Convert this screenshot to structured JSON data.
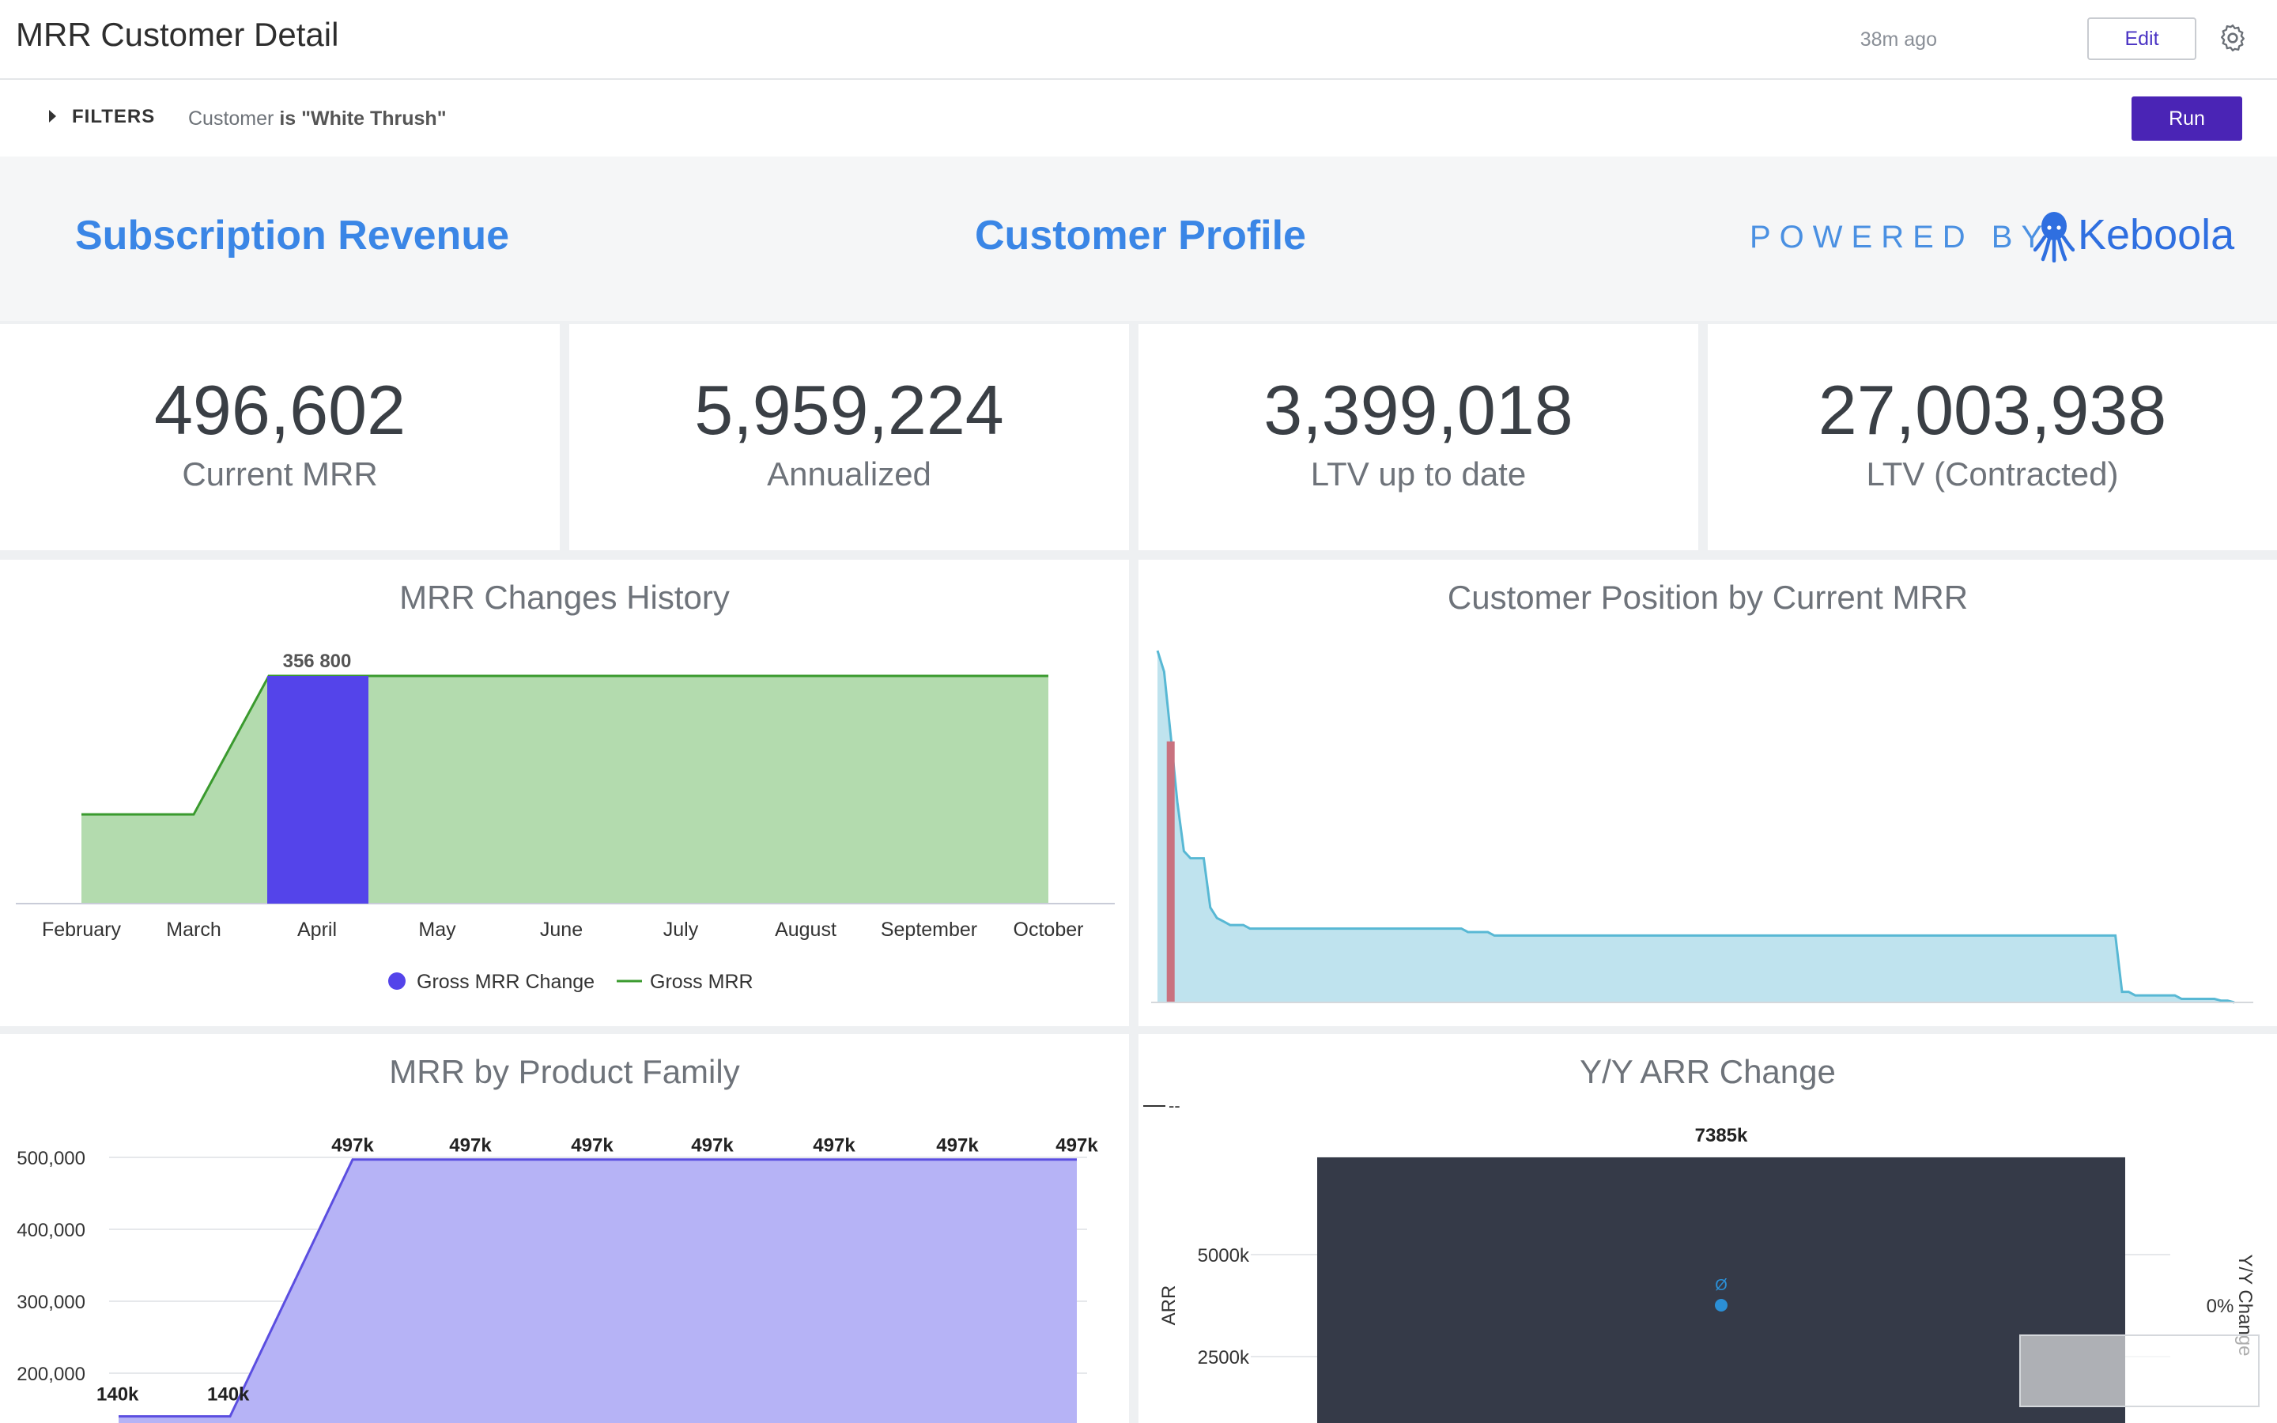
{
  "header": {
    "title": "MRR Customer Detail",
    "last_run": "38m ago",
    "edit_label": "Edit",
    "settings_icon": "gear-icon"
  },
  "filters": {
    "toggle_label": "FILTERS",
    "field": "Customer",
    "operator": "is",
    "value": "\"White Thrush\"",
    "run_label": "Run"
  },
  "banner": {
    "left_heading": "Subscription Revenue",
    "center_heading": "Customer Profile",
    "powered_by": "POWERED BY",
    "brand": "Keboola",
    "brand_icon": "octopus-logo-icon",
    "accent_color": "#3a86e6"
  },
  "kpis": [
    {
      "value": "496,602",
      "label": "Current MRR"
    },
    {
      "value": "5,959,224",
      "label": "Annualized"
    },
    {
      "value": "3,399,018",
      "label": "LTV up to date"
    },
    {
      "value": "27,003,938",
      "label": "LTV (Contracted)"
    }
  ],
  "chart_data": [
    {
      "type": "bar",
      "title": "MRR Changes History",
      "categories": [
        "February",
        "March",
        "April",
        "May",
        "June",
        "July",
        "August",
        "September",
        "October"
      ],
      "series": [
        {
          "name": "Gross MRR Change",
          "kind": "bar",
          "color": "#5444ea",
          "values": [
            null,
            null,
            356800,
            null,
            null,
            null,
            null,
            null,
            null
          ]
        },
        {
          "name": "Gross MRR",
          "kind": "area",
          "color": "#3a9a2e",
          "fill": "#b3dbae",
          "values": [
            139800,
            139800,
            356800,
            356800,
            356800,
            356800,
            356800,
            356800,
            356800
          ]
        }
      ],
      "data_labels": [
        {
          "category": "April",
          "text": "356 800"
        }
      ],
      "ylim": [
        0,
        400000
      ],
      "legend": "bottom"
    },
    {
      "type": "area",
      "title": "Customer Position by Current MRR",
      "color": "#58b8d4",
      "fill": "#bfe3ee",
      "highlight_color": "#c9727f",
      "highlight_index": 2,
      "values": [
        1,
        0.94,
        0.76,
        0.57,
        0.43,
        0.41,
        0.41,
        0.41,
        0.27,
        0.24,
        0.23,
        0.22,
        0.22,
        0.22,
        0.21,
        0.21,
        0.21,
        0.21,
        0.21,
        0.21,
        0.21,
        0.21,
        0.21,
        0.21,
        0.21,
        0.21,
        0.21,
        0.21,
        0.21,
        0.21,
        0.21,
        0.21,
        0.21,
        0.21,
        0.21,
        0.21,
        0.21,
        0.21,
        0.21,
        0.21,
        0.21,
        0.21,
        0.21,
        0.21,
        0.21,
        0.21,
        0.21,
        0.2,
        0.2,
        0.2,
        0.2,
        0.19,
        0.19,
        0.19,
        0.19,
        0.19,
        0.19,
        0.19,
        0.19,
        0.19,
        0.19,
        0.19,
        0.19,
        0.19,
        0.19,
        0.19,
        0.19,
        0.19,
        0.19,
        0.19,
        0.19,
        0.19,
        0.19,
        0.19,
        0.19,
        0.19,
        0.19,
        0.19,
        0.19,
        0.19,
        0.19,
        0.19,
        0.19,
        0.19,
        0.19,
        0.19,
        0.19,
        0.19,
        0.19,
        0.19,
        0.19,
        0.19,
        0.19,
        0.19,
        0.19,
        0.19,
        0.19,
        0.19,
        0.19,
        0.19,
        0.19,
        0.19,
        0.19,
        0.19,
        0.19,
        0.19,
        0.19,
        0.19,
        0.19,
        0.19,
        0.19,
        0.19,
        0.19,
        0.19,
        0.19,
        0.19,
        0.19,
        0.19,
        0.19,
        0.19,
        0.19,
        0.19,
        0.19,
        0.19,
        0.19,
        0.19,
        0.19,
        0.19,
        0.19,
        0.19,
        0.19,
        0.19,
        0.19,
        0.19,
        0.19,
        0.19,
        0.19,
        0.19,
        0.19,
        0.19,
        0.19,
        0.19,
        0.19,
        0.19,
        0.19,
        0.19,
        0.03,
        0.03,
        0.02,
        0.02,
        0.02,
        0.02,
        0.02,
        0.02,
        0.02,
        0.01,
        0.01,
        0.01,
        0.01,
        0.01,
        0.01,
        0.005,
        0.005,
        0.0
      ]
    },
    {
      "type": "area",
      "title": "MRR by Product Family",
      "color": "#5b4ee0",
      "fill": "#b6b3f6",
      "y_ticks": [
        "500,000",
        "400,000",
        "300,000",
        "200,000"
      ],
      "ylim": [
        120000,
        540000
      ],
      "values": [
        140000,
        140000,
        497000,
        497000,
        497000,
        497000,
        497000,
        497000,
        497000
      ],
      "data_labels": [
        "140k",
        "140k",
        "497k",
        "497k",
        "497k",
        "497k",
        "497k",
        "497k",
        "497k"
      ]
    },
    {
      "type": "bar",
      "title": "Y/Y ARR Change",
      "ylabel": "ARR",
      "y2label": "Y/Y Change",
      "y_ticks": [
        "5000k",
        "2500k"
      ],
      "y2_ticks": [
        "0%"
      ],
      "ylim": [
        0,
        8000
      ],
      "bar_color": "#353a48",
      "values": [
        7385
      ],
      "data_labels": [
        "7385k"
      ],
      "point_label": "Ø",
      "point_color": "#2b8fd6",
      "legend_stub": "--"
    }
  ]
}
